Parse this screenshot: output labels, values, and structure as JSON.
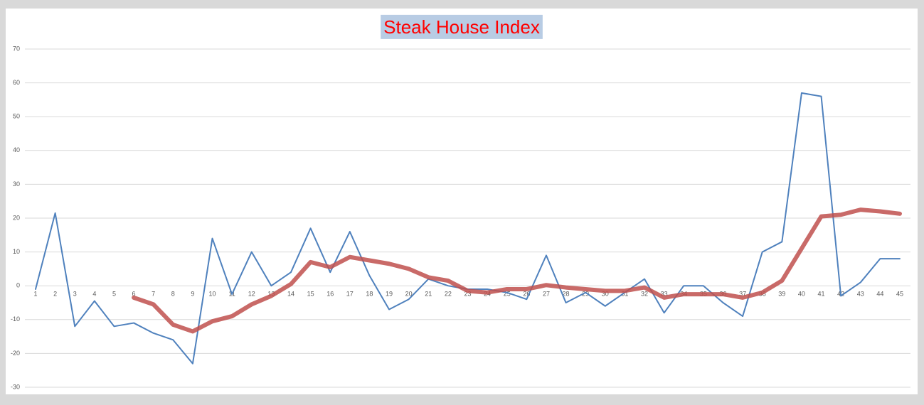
{
  "chart_data": {
    "type": "line",
    "title": "Steak House Index",
    "categories": [
      1,
      2,
      3,
      4,
      5,
      6,
      7,
      8,
      9,
      10,
      11,
      12,
      13,
      14,
      15,
      16,
      17,
      18,
      19,
      20,
      21,
      22,
      23,
      24,
      25,
      26,
      27,
      28,
      29,
      30,
      31,
      32,
      33,
      34,
      35,
      36,
      37,
      38,
      39,
      40,
      41,
      42,
      43,
      44,
      45
    ],
    "series": [
      {
        "color": "#4f81bd",
        "values": [
          -1,
          21.5,
          -12,
          -4.5,
          -12,
          -11,
          -14,
          -16,
          -23,
          14,
          -2.5,
          10,
          0,
          4,
          17,
          4,
          16,
          3,
          -7,
          -4,
          2,
          0,
          -1,
          -1,
          -2,
          -4,
          9,
          -5,
          -2,
          -6,
          -2,
          2,
          -8,
          0,
          0,
          -5,
          -9,
          10,
          13,
          57,
          56,
          -3,
          1,
          8,
          8
        ]
      },
      {
        "color": "#c0504d",
        "values": [
          null,
          null,
          null,
          null,
          null,
          -3.5,
          -5.5,
          -11.5,
          -13.5,
          -10.5,
          -9,
          -5.5,
          -3,
          0.5,
          7,
          5.5,
          8.5,
          7.5,
          6.5,
          5,
          2.5,
          1.5,
          -1.5,
          -2,
          -1,
          -1,
          0.2,
          -0.5,
          -1,
          -1.5,
          -1.5,
          -0.5,
          -3.5,
          -2.5,
          -2.5,
          -2.5,
          -3.5,
          -2,
          1.5,
          11,
          20.5,
          21,
          22.5,
          22,
          21.3
        ]
      }
    ],
    "ylim": [
      -30,
      70
    ],
    "yticks": [
      -30,
      -20,
      -10,
      0,
      10,
      20,
      30,
      40,
      50,
      60,
      70
    ],
    "grid": true
  }
}
